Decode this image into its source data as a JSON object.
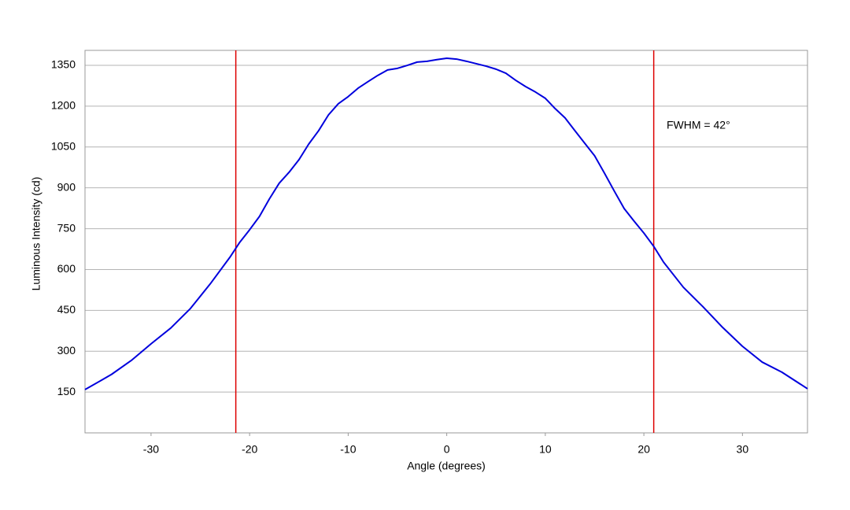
{
  "chart_data": {
    "type": "line",
    "x_label": "Angle (degrees)",
    "y_label": "Luminous Intensity (cd)",
    "annotation": "FWHM = 42°",
    "x": [
      -36.7,
      -35,
      -34,
      -32,
      -30,
      -28,
      -26,
      -24,
      -22,
      -21,
      -20,
      -19,
      -18,
      -17,
      -16,
      -15,
      -14,
      -13,
      -12,
      -11,
      -10,
      -9,
      -8,
      -7,
      -6,
      -5,
      -4,
      -3,
      -2,
      -1,
      0,
      1,
      2,
      3,
      4,
      5,
      6,
      7,
      8,
      9,
      10,
      11,
      12,
      13,
      14,
      15,
      16,
      17,
      18,
      19,
      20,
      21,
      22,
      24,
      26,
      28,
      30,
      32,
      34,
      36.6
    ],
    "series": [
      {
        "color": "#0000dd",
        "values": [
          159,
          194,
          215,
          266,
          327,
          385,
          457,
          547,
          645,
          700,
          746,
          795,
          859,
          917,
          957,
          1003,
          1061,
          1110,
          1168,
          1209,
          1235,
          1266,
          1290,
          1313,
          1333,
          1339,
          1350,
          1362,
          1365,
          1371,
          1376,
          1373,
          1365,
          1356,
          1347,
          1336,
          1321,
          1295,
          1272,
          1252,
          1229,
          1191,
          1157,
          1110,
          1064,
          1018,
          954,
          888,
          824,
          778,
          734,
          685,
          627,
          535,
          463,
          387,
          318,
          260,
          223,
          162
        ]
      }
    ],
    "vlines": [
      -21.4,
      21
    ],
    "vline_color": "#dd0000",
    "xlim": [
      -36.7,
      36.6
    ],
    "ylim": [
      0,
      1405
    ],
    "xticks": [
      -30,
      -20,
      -10,
      0,
      10,
      20,
      30
    ],
    "yticks": [
      150,
      300,
      450,
      600,
      750,
      900,
      1050,
      1200,
      1350
    ],
    "grid": true
  }
}
